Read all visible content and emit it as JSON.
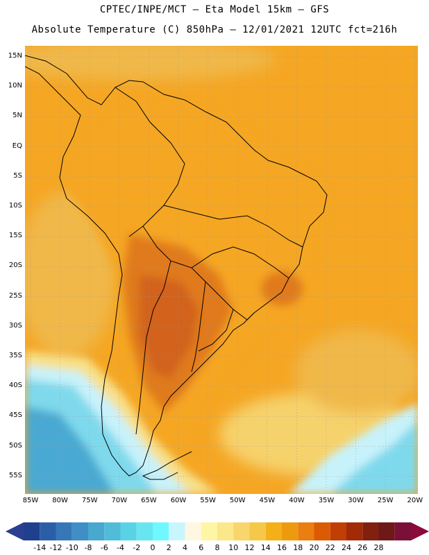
{
  "header": {
    "line1": "CPTEC/INPE/MCT –  Eta Model 15km – GFS",
    "line2": "Absolute Temperature (C) 850hPa – 12/01/2021 12UTC fct=216h"
  },
  "axes": {
    "lat_ticks": [
      "15N",
      "10N",
      "5N",
      "EQ",
      "5S",
      "10S",
      "15S",
      "20S",
      "25S",
      "30S",
      "35S",
      "40S",
      "45S",
      "50S",
      "55S"
    ],
    "lon_ticks": [
      "85W",
      "80W",
      "75W",
      "70W",
      "65W",
      "60W",
      "55W",
      "50W",
      "45W",
      "40W",
      "35W",
      "30W",
      "25W",
      "20W"
    ]
  },
  "colorbar": {
    "labels": [
      "-14",
      "-12",
      "-10",
      "-8",
      "-6",
      "-4",
      "-2",
      "0",
      "2",
      "4",
      "6",
      "8",
      "10",
      "12",
      "14",
      "16",
      "18",
      "20",
      "22",
      "24",
      "26",
      "28"
    ],
    "colors": [
      "#1f3f8f",
      "#2a5fa8",
      "#3677b8",
      "#3f8fc6",
      "#48a8cf",
      "#50bcd8",
      "#5ad2e6",
      "#68e6f0",
      "#6ff8ff",
      "#c8f6ff",
      "#fff7e2",
      "#fef6a4",
      "#fbe88a",
      "#f8d66c",
      "#f5c84a",
      "#f4b018",
      "#ee9a10",
      "#ea7e10",
      "#dc5a04",
      "#c13e04",
      "#a32a06",
      "#822010",
      "#6e1818",
      "#7a0f3a"
    ],
    "low_arrow_color": "#2a3f90",
    "high_arrow_color": "#8b0a3a"
  },
  "field_colors": {
    "ocean_warm": "#f5a623",
    "ocean_mid": "#f0b84a",
    "ocean_cool": "#f6d26c",
    "hot_core": "#d2621a",
    "hot_mid": "#e07a1c",
    "cold_deep": "#2f7bb8",
    "cold_mid": "#49a9d2",
    "cold_light": "#7fd9ec",
    "cold_pale": "#c8f2fb",
    "warm_yellow": "#f8e08a"
  }
}
